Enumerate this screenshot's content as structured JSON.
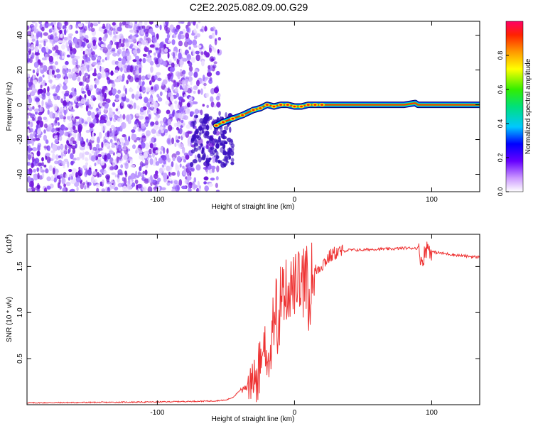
{
  "title": "C2E2.2025.082.09.00.G29",
  "colors": {
    "trace": "#ee3333",
    "cloud": "#7a1fe0",
    "background": "#ffffff"
  },
  "chart_data": [
    {
      "type": "heatmap",
      "xlabel": "Height of straight line (km)",
      "ylabel": "Frequency (Hz)",
      "xlim": [
        -195,
        135
      ],
      "ylim": [
        -50,
        48
      ],
      "x_ticks": [
        {
          "value": -100,
          "label": "-100"
        },
        {
          "value": 0,
          "label": "0"
        },
        {
          "value": 100,
          "label": "100"
        }
      ],
      "y_ticks": [
        {
          "value": 40,
          "label": "40"
        },
        {
          "value": 20,
          "label": "20"
        },
        {
          "value": 0,
          "label": "0"
        },
        {
          "value": -20,
          "label": "-20"
        },
        {
          "value": -40,
          "label": "-40"
        }
      ],
      "noise_region_x": [
        -195,
        -58
      ],
      "signal_track": {
        "x": [
          -57,
          -52,
          -45,
          -38,
          -30,
          -25,
          -20,
          -15,
          -10,
          -5,
          0,
          5,
          10,
          15,
          20,
          40,
          60,
          80,
          88,
          90,
          100,
          120,
          135
        ],
        "y": [
          -12,
          -10,
          -8,
          -6,
          -3,
          -2,
          0,
          -1,
          0,
          0,
          -1,
          -1,
          0,
          0,
          0,
          0,
          0,
          0,
          1,
          0,
          0,
          0,
          0
        ]
      },
      "colorbar": {
        "label": "Normalized spectral amplitude",
        "range": [
          0,
          1
        ],
        "ticks": [
          {
            "value": 0.0,
            "label": "0.0"
          },
          {
            "value": 0.2,
            "label": "0.2"
          },
          {
            "value": 0.4,
            "label": "0.4"
          },
          {
            "value": 0.6,
            "label": "0.6"
          },
          {
            "value": 0.8,
            "label": "0.8"
          }
        ]
      },
      "grid": false
    },
    {
      "type": "line",
      "xlabel": "Height of straight line (km)",
      "ylabel": "SNR (10 * v/v)",
      "y_multiplier_label": "(x10",
      "y_multiplier_exp": "4",
      "xlim": [
        -195,
        135
      ],
      "ylim": [
        0,
        1.85
      ],
      "x_ticks": [
        {
          "value": -100,
          "label": "-100"
        },
        {
          "value": 0,
          "label": "0"
        },
        {
          "value": 100,
          "label": "100"
        }
      ],
      "y_ticks": [
        {
          "value": 0.5,
          "label": "0.5"
        },
        {
          "value": 1.0,
          "label": "1.0"
        },
        {
          "value": 1.5,
          "label": "1.5"
        }
      ],
      "series": [
        {
          "x": [
            -195,
            -100,
            -60,
            -50,
            -45,
            -40,
            -35,
            -30,
            -25,
            -20,
            -15,
            -10,
            -5,
            0,
            5,
            10,
            15,
            20,
            25,
            30,
            40,
            50,
            60,
            70,
            80,
            90,
            93,
            95,
            97,
            100,
            110,
            120,
            135
          ],
          "y": [
            0.02,
            0.03,
            0.04,
            0.05,
            0.08,
            0.15,
            0.25,
            0.3,
            0.5,
            0.8,
            1.1,
            1.2,
            1.25,
            1.3,
            1.35,
            1.4,
            1.45,
            1.52,
            1.6,
            1.65,
            1.68,
            1.68,
            1.69,
            1.69,
            1.7,
            1.7,
            1.55,
            1.65,
            1.72,
            1.66,
            1.64,
            1.62,
            1.6
          ]
        }
      ],
      "grid": false
    }
  ]
}
